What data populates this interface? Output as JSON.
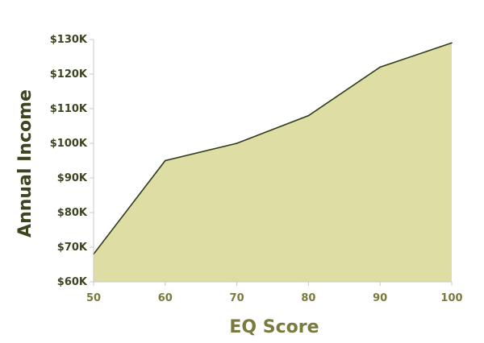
{
  "chart_data": {
    "type": "area",
    "x": [
      50,
      60,
      70,
      80,
      90,
      100
    ],
    "series": [
      {
        "values": [
          68,
          95,
          100,
          108,
          122,
          129
        ]
      }
    ],
    "xlabel": "EQ Score",
    "ylabel": "Annual Income",
    "xlim": [
      50,
      100
    ],
    "ylim": [
      60,
      130
    ],
    "x_ticks": [
      "50",
      "60",
      "70",
      "80",
      "90",
      "100"
    ],
    "y_ticks": [
      "$60K",
      "$70K",
      "$80K",
      "$90K",
      "$100K",
      "$110K",
      "$120K",
      "$130K"
    ],
    "y_tick_values": [
      60,
      70,
      80,
      90,
      100,
      110,
      120,
      130
    ],
    "grid": false,
    "fill_color": "#dedda4",
    "line_color": "#2f3b1a",
    "axis_color": "#c8c8c8",
    "tick_label_color_y": "#3b4520",
    "tick_label_color_x": "#7a7a3c"
  }
}
